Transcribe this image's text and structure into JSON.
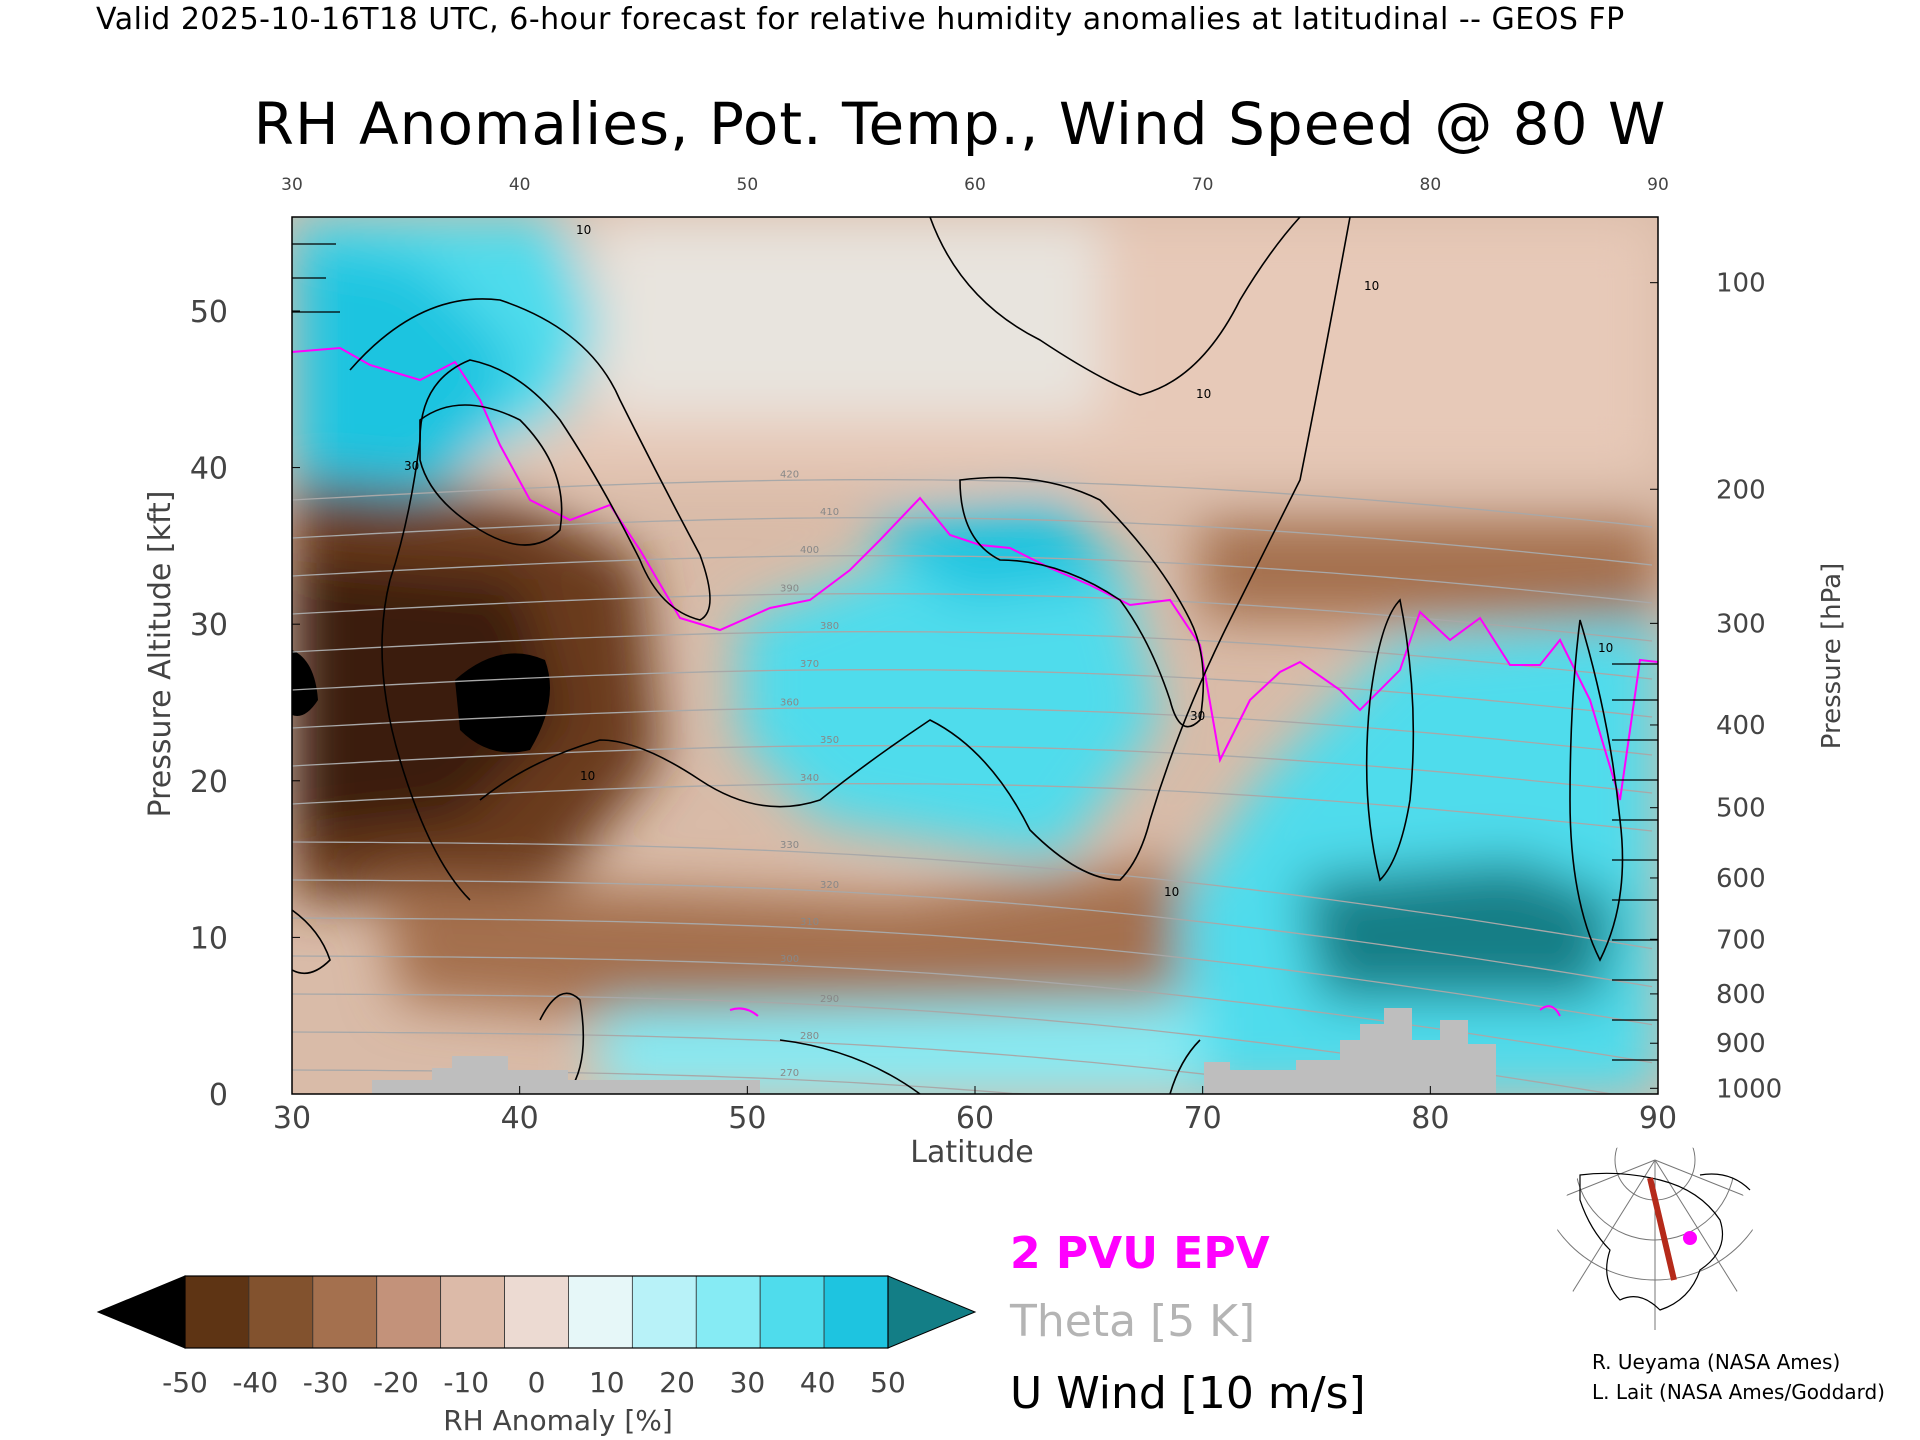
{
  "header": {
    "valid_line": "Valid 2025-10-16T18 UTC, 6-hour forecast for relative humidity anomalies at latitudinal -- GEOS FP"
  },
  "chart_data": {
    "type": "heatmap",
    "title": "RH Anomalies, Pot. Temp., Wind Speed @ 80 W",
    "xlabel": "Latitude",
    "ylabel": "Pressure Altitude [kft]",
    "y2label": "Pressure [hPa]",
    "xlim": [
      30,
      90
    ],
    "ylim": [
      0,
      56
    ],
    "x_ticks": [
      "30",
      "40",
      "50",
      "60",
      "70",
      "80",
      "90"
    ],
    "y_ticks": [
      "0",
      "10",
      "20",
      "30",
      "40",
      "50"
    ],
    "y2_ticks": [
      "100",
      "200",
      "300",
      "400",
      "500",
      "600",
      "700",
      "800",
      "900",
      "1000"
    ],
    "colorbar": {
      "label": "RH Anomaly [%]",
      "ticks": [
        "-50",
        "-40",
        "-30",
        "-20",
        "-10",
        "0",
        "10",
        "20",
        "30",
        "40",
        "50"
      ],
      "colors": [
        "#000000",
        "#3a1a08",
        "#5e3414",
        "#82522e",
        "#a4704e",
        "#c3927a",
        "#dcbaa8",
        "#ecdad2",
        "#e6f7f8",
        "#b8f2f8",
        "#86ebf4",
        "#4fdcec",
        "#1ec4e0",
        "#0c9cc4",
        "#137e86"
      ]
    },
    "legend": {
      "epv": "2 PVU EPV",
      "theta": "Theta [5 K]",
      "wind": "U Wind [10 m/s]",
      "epv_color": "#ff00ff",
      "theta_color": "#b4b4b4",
      "wind_color": "#000000"
    },
    "theta_levels": [
      "270",
      "280",
      "290",
      "300",
      "310",
      "320",
      "330",
      "340",
      "350",
      "360",
      "370",
      "380",
      "390",
      "400",
      "410",
      "420"
    ],
    "wind_label": "10",
    "wind_label_30": "30",
    "credits": [
      "R. Ueyama (NASA Ames)",
      "L. Lait (NASA Ames/Goddard)"
    ],
    "topography_color": "#bebebe",
    "locator_map": "north-america-polar-map"
  }
}
